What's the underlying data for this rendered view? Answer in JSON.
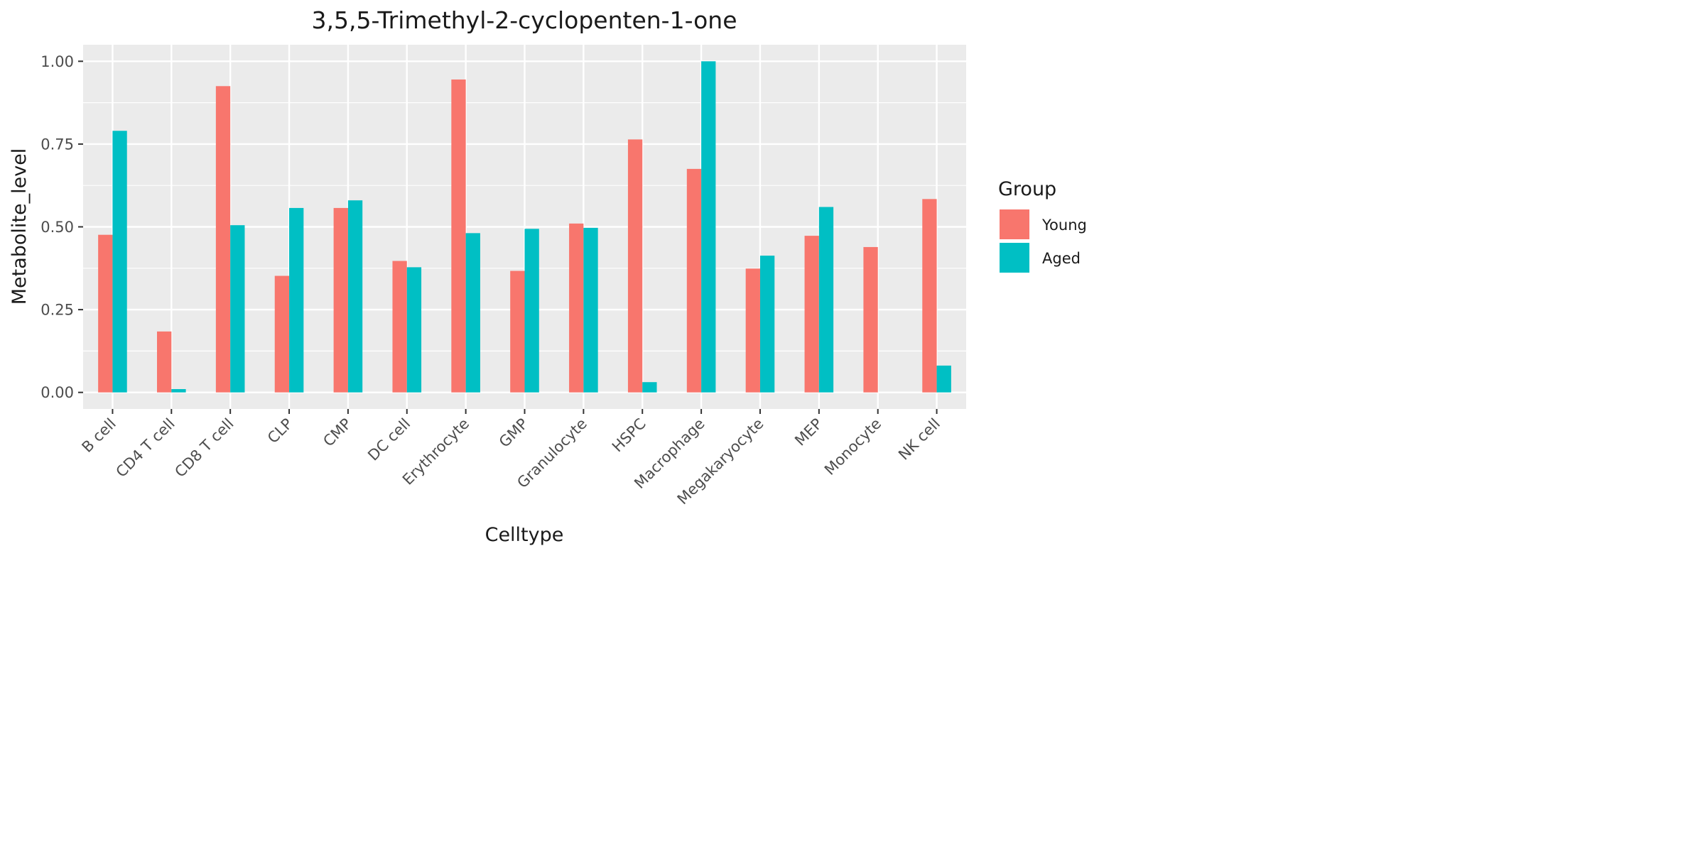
{
  "chart_data": {
    "type": "bar",
    "title": "3,5,5-Trimethyl-2-cyclopenten-1-one",
    "xlabel": "Celltype",
    "ylabel": "Metabolite_level",
    "ylim": [
      -0.05,
      1.05
    ],
    "yticks": [
      0,
      0.25,
      0.5,
      0.75,
      1.0
    ],
    "ytick_labels": [
      "0.00",
      "0.25",
      "0.50",
      "0.75",
      "1.00"
    ],
    "grid": true,
    "legend_position": "right",
    "legend_title": "Group",
    "categories": [
      "B cell",
      "CD4 T cell",
      "CD8 T cell",
      "CLP",
      "CMP",
      "DC cell",
      "Erythrocyte",
      "GMP",
      "Granulocyte",
      "HSPC",
      "Macrophage",
      "Megakaryocyte",
      "MEP",
      "Monocyte",
      "NK cell"
    ],
    "series": [
      {
        "name": "Young",
        "color": "#F8766D",
        "values": [
          0.476,
          0.184,
          0.925,
          0.352,
          0.557,
          0.397,
          0.945,
          0.367,
          0.51,
          0.764,
          0.675,
          0.374,
          0.473,
          0.439,
          0.584
        ]
      },
      {
        "name": "Aged",
        "color": "#00BFC4",
        "values": [
          0.79,
          0.01,
          0.505,
          0.557,
          0.58,
          0.378,
          0.481,
          0.494,
          0.497,
          0.031,
          1.0,
          0.413,
          0.56,
          null,
          0.081
        ]
      }
    ]
  }
}
